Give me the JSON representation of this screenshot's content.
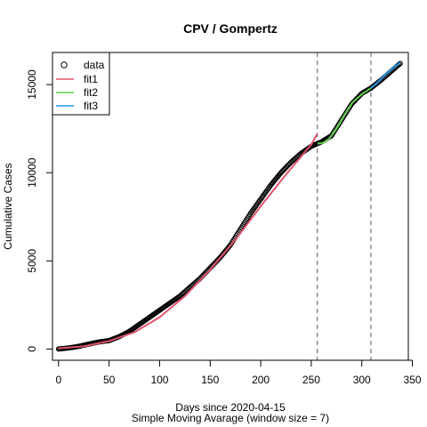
{
  "chart_data": {
    "type": "line",
    "title": "CPV / Gompertz",
    "xlabel": "Days since 2020-04-15",
    "xlabel2": "Simple Moving Avarage (window size = 7)",
    "ylabel": "Cumulative Cases",
    "xlim": [
      -6,
      346
    ],
    "ylim": [
      -640,
      16820
    ],
    "x_ticks": [
      0,
      50,
      100,
      150,
      200,
      250,
      300,
      350
    ],
    "y_ticks": [
      0,
      5000,
      10000,
      15000
    ],
    "vlines": [
      256,
      309
    ],
    "legend_position": "top-left",
    "grid": false,
    "colors": {
      "data": "#000000",
      "fit1": "#DF536B",
      "fit2": "#61D04F",
      "fit3": "#2297E6",
      "vline": "#555555"
    },
    "series": [
      {
        "name": "data",
        "kind": "points",
        "x": [
          0,
          10,
          20,
          30,
          40,
          50,
          60,
          70,
          80,
          90,
          100,
          110,
          120,
          130,
          140,
          150,
          160,
          170,
          180,
          190,
          200,
          210,
          220,
          230,
          240,
          250,
          256,
          260,
          270,
          280,
          290,
          300,
          309,
          320,
          330,
          338
        ],
        "y": [
          0,
          60,
          150,
          280,
          400,
          480,
          700,
          1000,
          1400,
          1800,
          2200,
          2600,
          3000,
          3500,
          4000,
          4600,
          5200,
          5900,
          6800,
          7700,
          8500,
          9300,
          10000,
          10600,
          11100,
          11500,
          11650,
          11750,
          12100,
          13000,
          13900,
          14500,
          14800,
          15300,
          15800,
          16200
        ]
      },
      {
        "name": "fit1",
        "kind": "line",
        "x": [
          0,
          25,
          50,
          75,
          100,
          125,
          150,
          175,
          200,
          225,
          250,
          256
        ],
        "y": [
          40,
          150,
          450,
          950,
          1800,
          3000,
          4500,
          6200,
          8100,
          9900,
          11600,
          12200
        ]
      },
      {
        "name": "fit2",
        "kind": "line",
        "x": [
          256,
          262,
          268,
          275,
          283,
          291,
          300,
          309
        ],
        "y": [
          11650,
          11700,
          11950,
          12500,
          13300,
          14000,
          14450,
          14800
        ]
      },
      {
        "name": "fit3",
        "kind": "line",
        "x": [
          309,
          316,
          323,
          330,
          338
        ],
        "y": [
          14800,
          15150,
          15550,
          15900,
          16250
        ]
      }
    ]
  }
}
